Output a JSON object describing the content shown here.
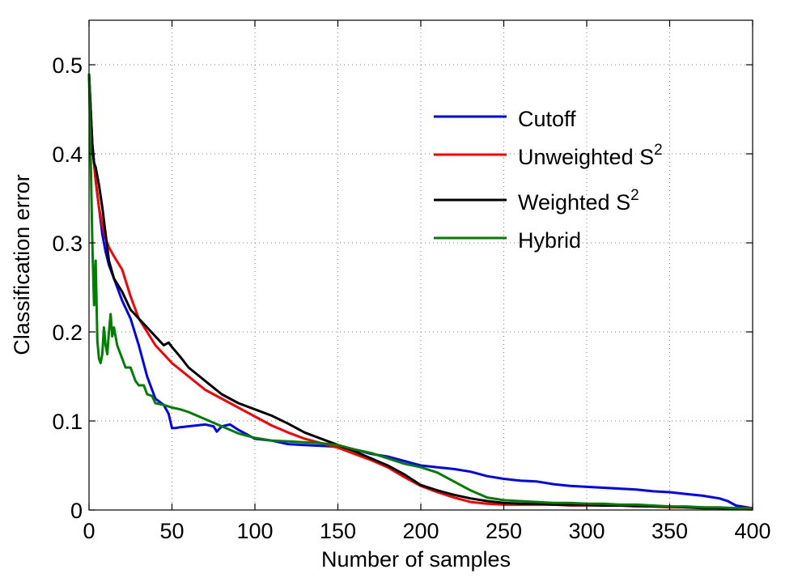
{
  "chart_data": {
    "type": "line",
    "title": "",
    "xlabel": "Number of samples",
    "ylabel": "Classification error",
    "xlim": [
      0,
      400
    ],
    "ylim": [
      0,
      0.55
    ],
    "xticks": [
      0,
      50,
      100,
      150,
      200,
      250,
      300,
      350,
      400
    ],
    "xtick_labels": [
      "0",
      "50",
      "100",
      "150",
      "200",
      "250",
      "300",
      "350",
      "400"
    ],
    "yticks": [
      0,
      0.1,
      0.2,
      0.3,
      0.4,
      0.5
    ],
    "ytick_labels": [
      "0",
      "0.1",
      "0.2",
      "0.3",
      "0.4",
      "0.5"
    ],
    "grid": true,
    "legend_position": "top-right",
    "series": [
      {
        "name": "Cutoff",
        "legend_base": "Cutoff",
        "legend_sup": "",
        "color": "#0000ff",
        "x": [
          0,
          1,
          2,
          4,
          6,
          8,
          10,
          12,
          15,
          20,
          25,
          30,
          35,
          40,
          45,
          48,
          50,
          52,
          55,
          60,
          65,
          70,
          75,
          77,
          80,
          85,
          90,
          95,
          100,
          110,
          120,
          130,
          140,
          150,
          160,
          170,
          180,
          190,
          200,
          210,
          220,
          230,
          240,
          250,
          260,
          270,
          280,
          290,
          300,
          310,
          320,
          330,
          340,
          350,
          360,
          370,
          380,
          385,
          390,
          400
        ],
        "y": [
          0.49,
          0.45,
          0.41,
          0.37,
          0.34,
          0.31,
          0.29,
          0.275,
          0.26,
          0.235,
          0.215,
          0.185,
          0.15,
          0.125,
          0.118,
          0.108,
          0.092,
          0.092,
          0.093,
          0.094,
          0.095,
          0.096,
          0.094,
          0.088,
          0.094,
          0.096,
          0.09,
          0.085,
          0.08,
          0.078,
          0.074,
          0.073,
          0.072,
          0.071,
          0.068,
          0.063,
          0.06,
          0.055,
          0.05,
          0.048,
          0.046,
          0.043,
          0.038,
          0.035,
          0.033,
          0.032,
          0.029,
          0.027,
          0.026,
          0.025,
          0.024,
          0.023,
          0.021,
          0.02,
          0.018,
          0.016,
          0.013,
          0.01,
          0.005,
          0.002
        ]
      },
      {
        "name": "Unweighted S²",
        "legend_base": "Unweighted S",
        "legend_sup": "2",
        "color": "#ff0000",
        "x": [
          0,
          1,
          2,
          4,
          6,
          8,
          10,
          12,
          15,
          20,
          25,
          30,
          35,
          40,
          45,
          50,
          60,
          70,
          80,
          90,
          100,
          110,
          120,
          130,
          140,
          150,
          160,
          170,
          180,
          190,
          200,
          210,
          220,
          230,
          240,
          250,
          260,
          270,
          280,
          290,
          300,
          310,
          320,
          330,
          340,
          350,
          360,
          370,
          380,
          390,
          400
        ],
        "y": [
          0.49,
          0.45,
          0.41,
          0.37,
          0.34,
          0.32,
          0.305,
          0.295,
          0.285,
          0.27,
          0.24,
          0.215,
          0.2,
          0.185,
          0.175,
          0.165,
          0.15,
          0.135,
          0.125,
          0.115,
          0.105,
          0.095,
          0.087,
          0.08,
          0.075,
          0.07,
          0.063,
          0.056,
          0.048,
          0.037,
          0.027,
          0.02,
          0.014,
          0.009,
          0.007,
          0.006,
          0.006,
          0.006,
          0.006,
          0.005,
          0.005,
          0.005,
          0.005,
          0.004,
          0.004,
          0.003,
          0.003,
          0.003,
          0.002,
          0.002,
          0.002
        ]
      },
      {
        "name": "Weighted S²",
        "legend_base": "Weighted S",
        "legend_sup": "2",
        "color": "#000000",
        "x": [
          0,
          1,
          2,
          3,
          4,
          6,
          8,
          10,
          12,
          15,
          20,
          25,
          30,
          35,
          40,
          45,
          48,
          50,
          55,
          60,
          70,
          80,
          90,
          100,
          110,
          120,
          130,
          140,
          150,
          160,
          170,
          180,
          190,
          200,
          210,
          220,
          230,
          240,
          250,
          260,
          270,
          280,
          290,
          300,
          310,
          320,
          330,
          340,
          350,
          360,
          370,
          380,
          390,
          400
        ],
        "y": [
          0.49,
          0.45,
          0.41,
          0.39,
          0.385,
          0.365,
          0.34,
          0.31,
          0.28,
          0.26,
          0.245,
          0.225,
          0.215,
          0.205,
          0.195,
          0.185,
          0.188,
          0.183,
          0.172,
          0.16,
          0.145,
          0.13,
          0.12,
          0.113,
          0.106,
          0.097,
          0.087,
          0.08,
          0.073,
          0.066,
          0.058,
          0.05,
          0.04,
          0.028,
          0.022,
          0.017,
          0.013,
          0.01,
          0.008,
          0.007,
          0.007,
          0.006,
          0.006,
          0.006,
          0.005,
          0.005,
          0.005,
          0.004,
          0.004,
          0.003,
          0.002,
          0.002,
          0.001,
          0.001
        ]
      },
      {
        "name": "Hybrid",
        "legend_base": "Hybrid",
        "legend_sup": "",
        "color": "#008000",
        "x": [
          0,
          1,
          2,
          3,
          4,
          5,
          6,
          7,
          8,
          9,
          10,
          11,
          12,
          13,
          14,
          15,
          17,
          20,
          22,
          25,
          28,
          30,
          33,
          35,
          38,
          40,
          45,
          50,
          55,
          60,
          70,
          80,
          90,
          100,
          110,
          120,
          130,
          140,
          150,
          160,
          170,
          180,
          190,
          200,
          210,
          220,
          230,
          240,
          250,
          260,
          270,
          280,
          290,
          300,
          310,
          320,
          330,
          340,
          350,
          360,
          370,
          380,
          390,
          400
        ],
        "y": [
          0.49,
          0.4,
          0.3,
          0.23,
          0.28,
          0.19,
          0.17,
          0.165,
          0.175,
          0.205,
          0.185,
          0.175,
          0.2,
          0.22,
          0.195,
          0.205,
          0.185,
          0.17,
          0.16,
          0.16,
          0.145,
          0.14,
          0.14,
          0.13,
          0.128,
          0.12,
          0.118,
          0.115,
          0.113,
          0.11,
          0.102,
          0.094,
          0.086,
          0.081,
          0.078,
          0.077,
          0.076,
          0.075,
          0.073,
          0.068,
          0.064,
          0.058,
          0.052,
          0.048,
          0.042,
          0.032,
          0.022,
          0.014,
          0.011,
          0.01,
          0.009,
          0.008,
          0.008,
          0.007,
          0.007,
          0.006,
          0.006,
          0.005,
          0.004,
          0.004,
          0.003,
          0.003,
          0.002,
          0.001
        ]
      }
    ]
  }
}
